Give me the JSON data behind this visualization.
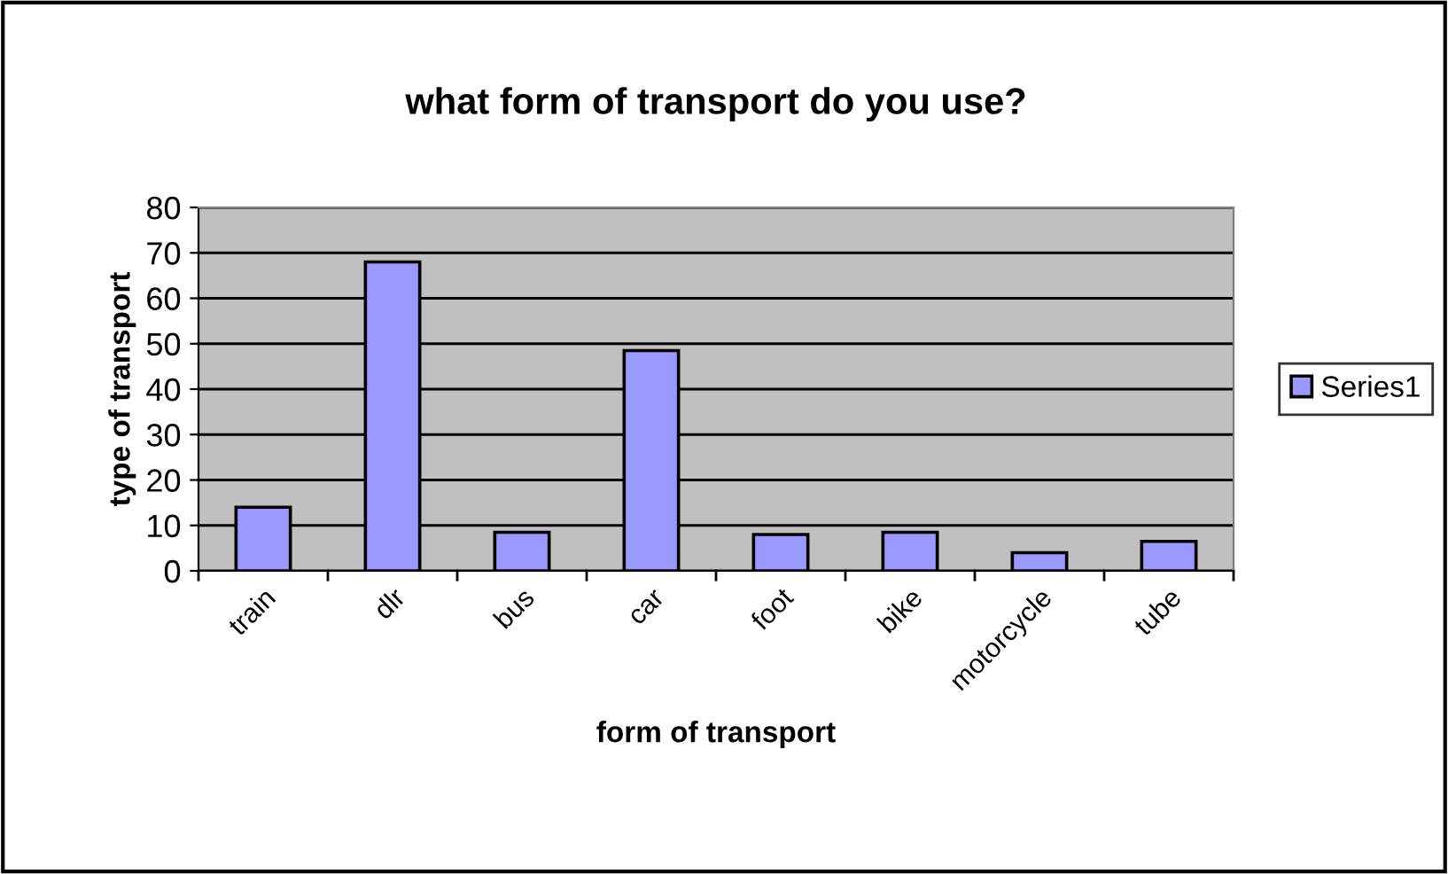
{
  "chart_data": {
    "type": "bar",
    "title": "what form of transport do you use?",
    "xlabel": "form of transport",
    "ylabel": "type of transport",
    "categories": [
      "train",
      "dlr",
      "bus",
      "car",
      "foot",
      "bike",
      "motorcycle",
      "tube"
    ],
    "series": [
      {
        "name": "Series1",
        "color": "#9999ff",
        "values": [
          14,
          68,
          8.5,
          48.5,
          8,
          8.5,
          4,
          6.5
        ]
      }
    ],
    "ylim": [
      0,
      80
    ],
    "yticks": [
      0,
      10,
      20,
      30,
      40,
      50,
      60,
      70,
      80
    ],
    "grid": "y",
    "legend": "right"
  }
}
